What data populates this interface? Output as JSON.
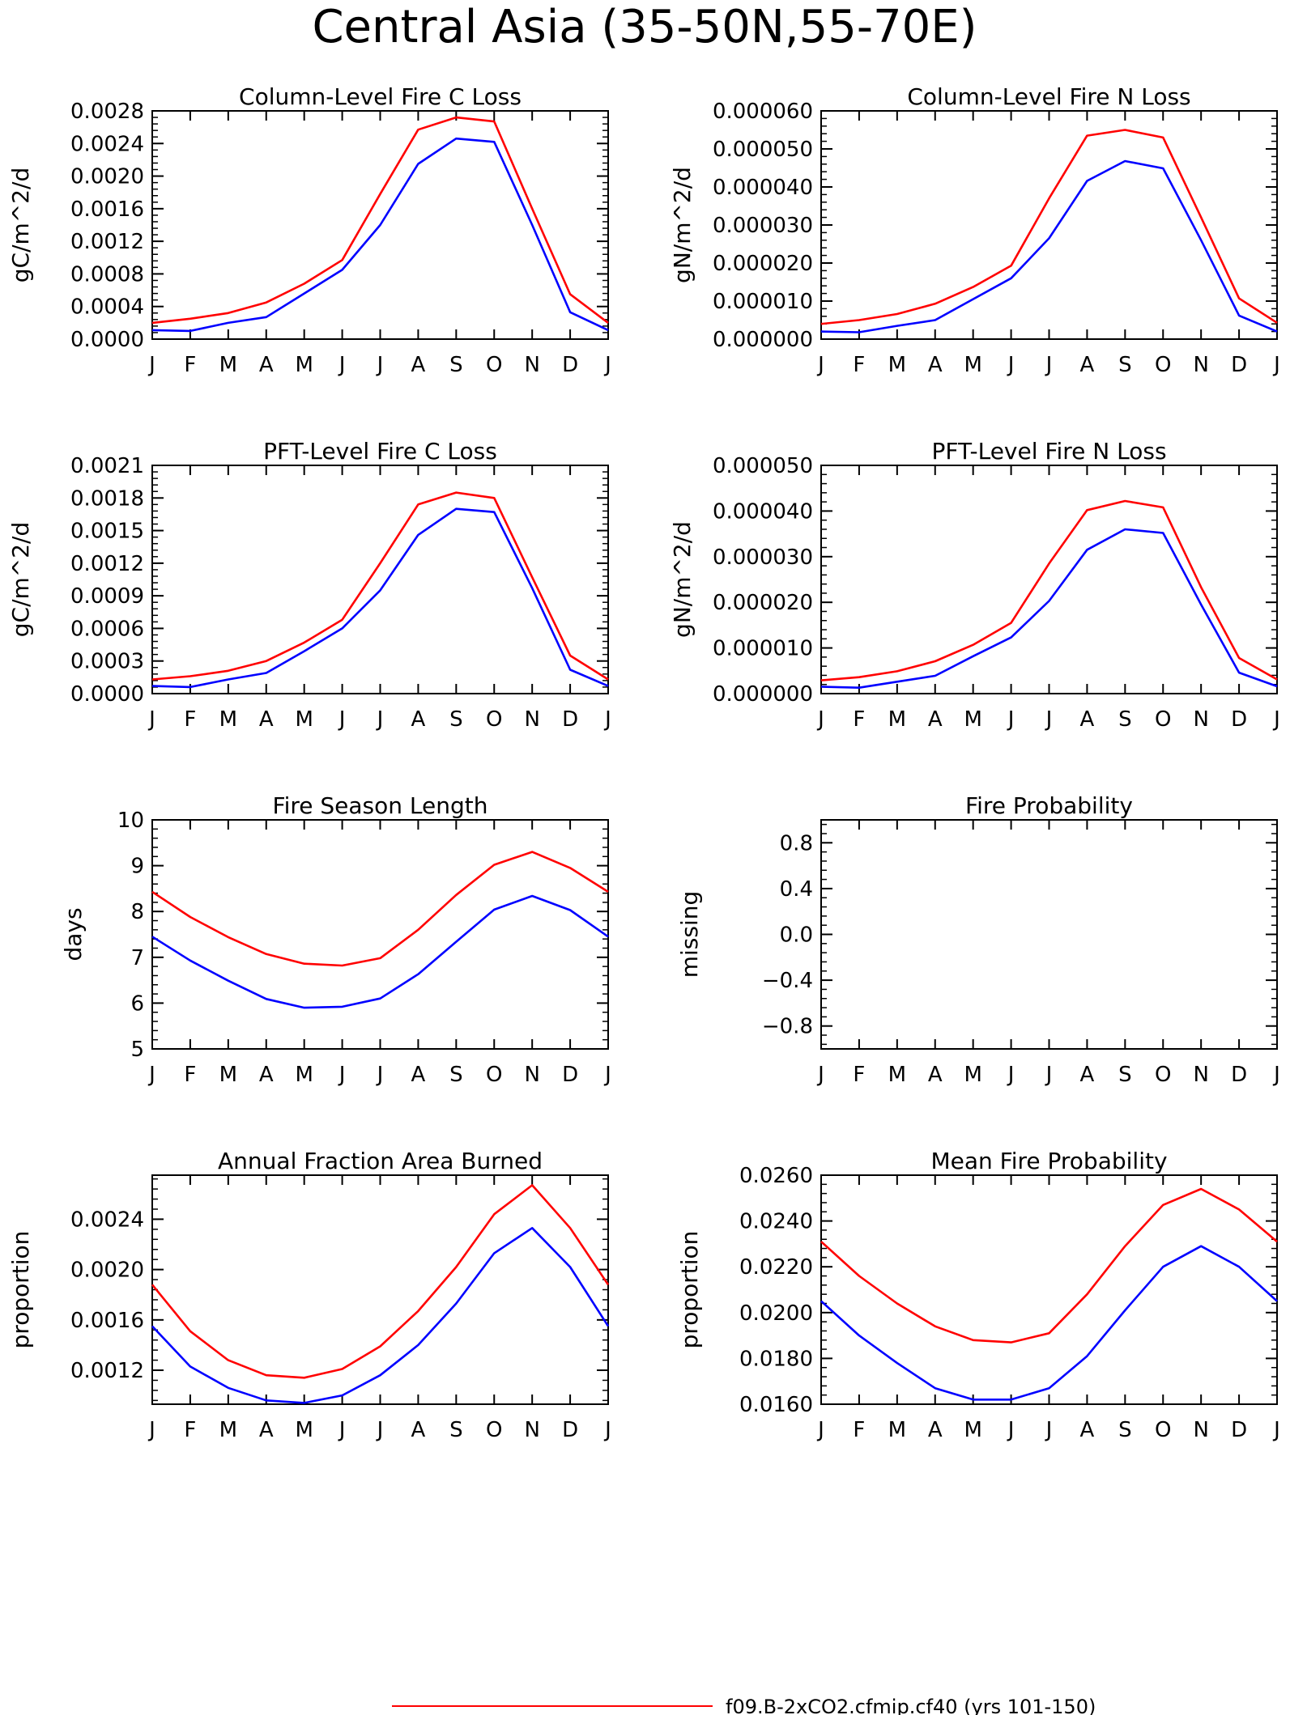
{
  "figure_title": "Central Asia (35-50N,55-70E)",
  "months": [
    "J",
    "F",
    "M",
    "A",
    "M",
    "J",
    "J",
    "A",
    "S",
    "O",
    "N",
    "D",
    "J"
  ],
  "colors": {
    "series_red": "#ff0000",
    "series_blue": "#0000ff",
    "axis": "#000000"
  },
  "legend": {
    "label": "f09.B-2xCO2.cfmip.cf40 (yrs 101-150)",
    "color": "#ff0000"
  },
  "chart_data": [
    {
      "type": "line",
      "title": "Column-Level Fire C Loss",
      "ylabel": "gC/m^2/d",
      "ylim": [
        0,
        0.0028
      ],
      "yticks": [
        "0.0000",
        "0.0004",
        "0.0008",
        "0.0012",
        "0.0016",
        "0.0020",
        "0.0024",
        "0.0028"
      ],
      "series": [
        {
          "color": "#ff0000",
          "values": [
            0.0002,
            0.00025,
            0.00032,
            0.00045,
            0.00068,
            0.00097,
            0.00178,
            0.00257,
            0.00272,
            0.00267,
            0.0016,
            0.00055,
            0.0002
          ]
        },
        {
          "color": "#0000ff",
          "values": [
            0.00011,
            0.0001,
            0.0002,
            0.00027,
            0.00056,
            0.00085,
            0.0014,
            0.00215,
            0.00246,
            0.00242,
            0.0014,
            0.00033,
            0.00011
          ]
        }
      ]
    },
    {
      "type": "line",
      "title": "Column-Level Fire N Loss",
      "ylabel": "gN/m^2/d",
      "ylim": [
        0,
        6e-05
      ],
      "yticks": [
        "0.000000",
        "0.000010",
        "0.000020",
        "0.000030",
        "0.000040",
        "0.000050",
        "0.000060"
      ],
      "series": [
        {
          "color": "#ff0000",
          "values": [
            4e-06,
            5e-06,
            6.6e-06,
            9.3e-06,
            1.37e-05,
            1.93e-05,
            3.7e-05,
            5.35e-05,
            5.5e-05,
            5.3e-05,
            3.2e-05,
            1.07e-05,
            4.3e-06
          ]
        },
        {
          "color": "#0000ff",
          "values": [
            2e-06,
            1.8e-06,
            3.5e-06,
            5e-06,
            1.05e-05,
            1.6e-05,
            2.65e-05,
            4.16e-05,
            4.68e-05,
            4.49e-05,
            2.6e-05,
            6.2e-06,
            2e-06
          ]
        }
      ]
    },
    {
      "type": "line",
      "title": "PFT-Level Fire C Loss",
      "ylabel": "gC/m^2/d",
      "ylim": [
        0,
        0.0021
      ],
      "yticks": [
        "0.0000",
        "0.0003",
        "0.0006",
        "0.0009",
        "0.0012",
        "0.0015",
        "0.0018",
        "0.0021"
      ],
      "series": [
        {
          "color": "#ff0000",
          "values": [
            0.00013,
            0.00016,
            0.00021,
            0.0003,
            0.00047,
            0.00068,
            0.0012,
            0.00174,
            0.00185,
            0.0018,
            0.00107,
            0.00035,
            0.00013
          ]
        },
        {
          "color": "#0000ff",
          "values": [
            7e-05,
            6e-05,
            0.00013,
            0.00019,
            0.00039,
            0.0006,
            0.00095,
            0.00146,
            0.0017,
            0.00167,
            0.00097,
            0.00022,
            7e-05
          ]
        }
      ]
    },
    {
      "type": "line",
      "title": "PFT-Level Fire N Loss",
      "ylabel": "gN/m^2/d",
      "ylim": [
        0,
        5e-05
      ],
      "yticks": [
        "0.000000",
        "0.000010",
        "0.000020",
        "0.000030",
        "0.000040",
        "0.000050"
      ],
      "series": [
        {
          "color": "#ff0000",
          "values": [
            2.9e-06,
            3.6e-06,
            4.9e-06,
            7.1e-06,
            1.07e-05,
            1.55e-05,
            2.85e-05,
            4.02e-05,
            4.22e-05,
            4.08e-05,
            2.33e-05,
            7.8e-06,
            3.1e-06
          ]
        },
        {
          "color": "#0000ff",
          "values": [
            1.5e-06,
            1.3e-06,
            2.6e-06,
            3.9e-06,
            8.2e-06,
            1.23e-05,
            2.03e-05,
            3.15e-05,
            3.6e-05,
            3.52e-05,
            1.95e-05,
            4.6e-06,
            1.6e-06
          ]
        }
      ]
    },
    {
      "type": "line",
      "title": "Fire Season Length",
      "ylabel": "days",
      "ylim": [
        5,
        10
      ],
      "yticks": [
        "5",
        "6",
        "7",
        "8",
        "9",
        "10"
      ],
      "series": [
        {
          "color": "#ff0000",
          "values": [
            8.43,
            7.88,
            7.44,
            7.07,
            6.86,
            6.82,
            6.98,
            7.6,
            8.36,
            9.02,
            9.3,
            8.95,
            8.43
          ]
        },
        {
          "color": "#0000ff",
          "values": [
            7.45,
            6.93,
            6.49,
            6.09,
            5.9,
            5.92,
            6.1,
            6.63,
            7.34,
            8.04,
            8.34,
            8.03,
            7.45
          ]
        }
      ]
    },
    {
      "type": "line",
      "title": "Fire Probability",
      "ylabel": "missing",
      "ylim": [
        -1,
        1
      ],
      "yticks": [
        "-0.8",
        "-0.4",
        "0.0",
        "0.4",
        "0.8"
      ],
      "series": []
    },
    {
      "type": "line",
      "title": "Annual Fraction Area Burned",
      "ylabel": "proportion",
      "ylim": [
        0.00093,
        0.00275
      ],
      "yticks": [
        "0.0012",
        "0.0016",
        "0.0020",
        "0.0024"
      ],
      "series": [
        {
          "color": "#ff0000",
          "values": [
            0.00188,
            0.00151,
            0.00128,
            0.00116,
            0.00114,
            0.00121,
            0.00139,
            0.00167,
            0.00202,
            0.00244,
            0.00267,
            0.00233,
            0.00188
          ]
        },
        {
          "color": "#0000ff",
          "values": [
            0.00155,
            0.00123,
            0.00106,
            0.00096,
            0.00094,
            0.001,
            0.00116,
            0.0014,
            0.00173,
            0.00213,
            0.00233,
            0.00202,
            0.00155
          ]
        }
      ]
    },
    {
      "type": "line",
      "title": "Mean Fire Probability",
      "ylabel": "proportion",
      "ylim": [
        0.016,
        0.026
      ],
      "yticks": [
        "0.0160",
        "0.0180",
        "0.0200",
        "0.0220",
        "0.0240",
        "0.0260"
      ],
      "series": [
        {
          "color": "#ff0000",
          "values": [
            0.0231,
            0.0216,
            0.0204,
            0.0194,
            0.0188,
            0.0187,
            0.0191,
            0.0208,
            0.0229,
            0.0247,
            0.0254,
            0.0245,
            0.0231
          ]
        },
        {
          "color": "#0000ff",
          "values": [
            0.0205,
            0.019,
            0.0178,
            0.0167,
            0.0162,
            0.0162,
            0.0167,
            0.0181,
            0.0201,
            0.022,
            0.0229,
            0.022,
            0.0205
          ]
        }
      ]
    }
  ]
}
